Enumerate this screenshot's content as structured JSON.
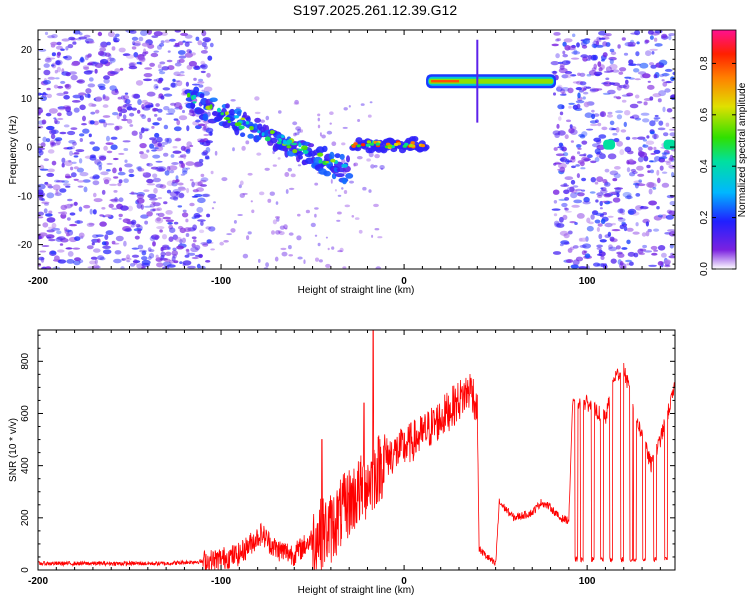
{
  "title": "S197.2025.261.12.39.G12",
  "chart_data": [
    {
      "type": "heatmap",
      "xlabel": "Height of straight line (km)",
      "ylabel": "Frequency (Hz)",
      "xlim": [
        -200,
        148
      ],
      "ylim": [
        -25,
        24
      ],
      "xticks": [
        "-200",
        "-100",
        "0",
        "100"
      ],
      "yticks": [
        "20",
        "10",
        "0",
        "-10",
        "-20"
      ],
      "colorbar": {
        "label": "Normalized spectral amplitude",
        "range": [
          0.0,
          0.93
        ],
        "ticks": [
          "0.0",
          "0.2",
          "0.4",
          "0.6",
          "0.8"
        ]
      },
      "features": [
        {
          "name": "noise",
          "x_range": [
            -200,
            -105
          ],
          "freq_range": [
            -25,
            24
          ],
          "amplitude": 0.1
        },
        {
          "name": "descending-trace",
          "x_range": [
            -118,
            -30
          ],
          "freq_start": 10,
          "freq_end": -5,
          "amplitude": 0.35
        },
        {
          "name": "zero-trace",
          "x_range": [
            -28,
            12
          ],
          "freq": 0.5,
          "amplitude": 0.75
        },
        {
          "name": "strong-line",
          "x_range": [
            12,
            83
          ],
          "freq": 13.5,
          "amplitude": 0.85
        },
        {
          "name": "noise-right",
          "x_range": [
            82,
            148
          ],
          "freq_range": [
            -25,
            24
          ],
          "amplitude": 0.12
        }
      ]
    },
    {
      "type": "line",
      "xlabel": "Height of straight line (km)",
      "ylabel": "SNR (10 * v/v)",
      "xlim": [
        -200,
        148
      ],
      "ylim": [
        0,
        920
      ],
      "xticks": [
        "-200",
        "-100",
        "0",
        "100"
      ],
      "yticks": [
        "0",
        "200",
        "400",
        "600",
        "800"
      ],
      "color": "#ff0000",
      "keypoints": [
        {
          "x": -200,
          "y": 25
        },
        {
          "x": -130,
          "y": 25
        },
        {
          "x": -105,
          "y": 35
        },
        {
          "x": -90,
          "y": 60
        },
        {
          "x": -78,
          "y": 140
        },
        {
          "x": -70,
          "y": 80
        },
        {
          "x": -60,
          "y": 60
        },
        {
          "x": -50,
          "y": 120
        },
        {
          "x": -40,
          "y": 160
        },
        {
          "x": -30,
          "y": 260
        },
        {
          "x": -20,
          "y": 330
        },
        {
          "x": -15,
          "y": 380
        },
        {
          "x": -10,
          "y": 430
        },
        {
          "x": 0,
          "y": 470
        },
        {
          "x": 10,
          "y": 520
        },
        {
          "x": 20,
          "y": 580
        },
        {
          "x": 30,
          "y": 650
        },
        {
          "x": 37,
          "y": 700
        },
        {
          "x": 40,
          "y": 600
        },
        {
          "x": 41,
          "y": 80
        },
        {
          "x": 50,
          "y": 20
        },
        {
          "x": 52,
          "y": 260
        },
        {
          "x": 60,
          "y": 200
        },
        {
          "x": 70,
          "y": 220
        },
        {
          "x": 75,
          "y": 260
        },
        {
          "x": 80,
          "y": 240
        },
        {
          "x": 85,
          "y": 200
        },
        {
          "x": 90,
          "y": 190
        },
        {
          "x": 92,
          "y": 630
        },
        {
          "x": 100,
          "y": 640
        },
        {
          "x": 110,
          "y": 580
        },
        {
          "x": 115,
          "y": 740
        },
        {
          "x": 120,
          "y": 770
        },
        {
          "x": 128,
          "y": 560
        },
        {
          "x": 135,
          "y": 400
        },
        {
          "x": 140,
          "y": 500
        },
        {
          "x": 148,
          "y": 700
        }
      ],
      "dropouts": [
        94,
        97,
        103,
        108,
        113,
        119,
        124,
        126,
        131,
        137,
        143
      ],
      "spikes": [
        {
          "x": -17,
          "y": 920
        },
        {
          "x": -22,
          "y": 640
        },
        {
          "x": -45,
          "y": 500
        }
      ]
    }
  ]
}
